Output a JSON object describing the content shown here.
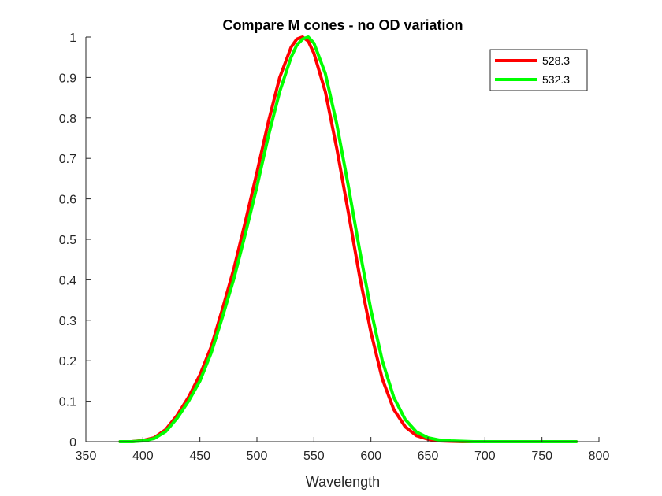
{
  "chart_data": {
    "type": "line",
    "title": "Compare M cones - no OD variation",
    "xlabel": "Wavelength",
    "ylabel": "",
    "xlim": [
      350,
      800
    ],
    "ylim": [
      0,
      1
    ],
    "xticks": [
      350,
      400,
      450,
      500,
      550,
      600,
      650,
      700,
      750,
      800
    ],
    "yticks": [
      0,
      0.1,
      0.2,
      0.3,
      0.4,
      0.5,
      0.6,
      0.7,
      0.8,
      0.9,
      1
    ],
    "ytick_labels": [
      "0",
      "0.1",
      "0.2",
      "0.3",
      "0.4",
      "0.5",
      "0.6",
      "0.7",
      "0.8",
      "0.9",
      "1"
    ],
    "grid": false,
    "legend_position": "top-right",
    "series": [
      {
        "name": "528.3",
        "color": "#ff0000",
        "x": [
          380,
          390,
          400,
          410,
          420,
          430,
          440,
          450,
          460,
          470,
          480,
          490,
          500,
          510,
          520,
          530,
          535,
          540,
          545,
          550,
          560,
          570,
          580,
          590,
          600,
          610,
          620,
          630,
          640,
          650,
          660,
          670,
          680,
          690,
          700,
          720,
          740,
          760,
          780
        ],
        "y": [
          0.0,
          0.0,
          0.003,
          0.01,
          0.03,
          0.065,
          0.11,
          0.165,
          0.235,
          0.33,
          0.43,
          0.545,
          0.665,
          0.79,
          0.9,
          0.975,
          0.995,
          1.0,
          0.99,
          0.96,
          0.865,
          0.725,
          0.57,
          0.41,
          0.27,
          0.155,
          0.08,
          0.037,
          0.015,
          0.006,
          0.002,
          0.001,
          0.0,
          0.0,
          0.0,
          0.0,
          0.0,
          0.0,
          0.0
        ]
      },
      {
        "name": "532.3",
        "color": "#00ff00",
        "x": [
          380,
          390,
          400,
          410,
          420,
          430,
          440,
          450,
          460,
          470,
          480,
          490,
          500,
          510,
          520,
          530,
          535,
          540,
          545,
          550,
          560,
          570,
          580,
          590,
          600,
          610,
          620,
          630,
          640,
          650,
          660,
          670,
          680,
          690,
          700,
          720,
          740,
          760,
          780
        ],
        "y": [
          0.0,
          0.0,
          0.002,
          0.008,
          0.025,
          0.058,
          0.1,
          0.15,
          0.22,
          0.31,
          0.405,
          0.515,
          0.63,
          0.755,
          0.865,
          0.95,
          0.98,
          0.995,
          1.0,
          0.985,
          0.91,
          0.785,
          0.635,
          0.475,
          0.325,
          0.2,
          0.11,
          0.055,
          0.024,
          0.01,
          0.004,
          0.002,
          0.001,
          0.0,
          0.0,
          0.0,
          0.0,
          0.0,
          0.0
        ]
      }
    ]
  }
}
